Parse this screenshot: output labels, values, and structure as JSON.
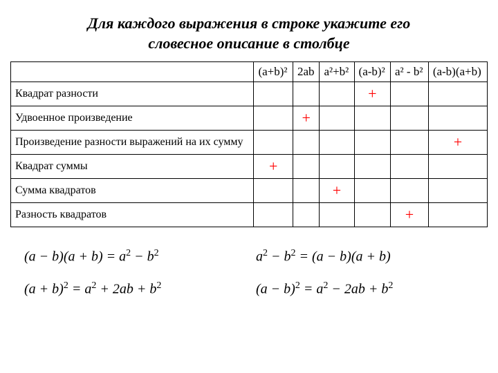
{
  "title_line1": "Для каждого выражения в строке укажите его",
  "title_line2": "словесное описание в столбце",
  "columns": [
    "(a+b)²",
    "2ab",
    "a²+b²",
    "(a-b)²",
    "a² - b²",
    "(a-b)(a+b)"
  ],
  "rows": [
    {
      "label": "Квадрат разности",
      "marks": [
        "",
        "",
        "",
        "+",
        "",
        ""
      ]
    },
    {
      "label": "Удвоенное произведение",
      "marks": [
        "",
        "+",
        "",
        "",
        "",
        ""
      ]
    },
    {
      "label": "Произведение разности выражений на их сумму",
      "marks": [
        "",
        "",
        "",
        "",
        "",
        "+"
      ]
    },
    {
      "label": "Квадрат суммы",
      "marks": [
        "+",
        "",
        "",
        "",
        "",
        ""
      ]
    },
    {
      "label": "Сумма квадратов",
      "marks": [
        "",
        "",
        "+",
        "",
        "",
        ""
      ]
    },
    {
      "label": "Разность квадратов",
      "marks": [
        "",
        "",
        "",
        "",
        "+",
        ""
      ]
    }
  ],
  "formulas": [
    "(a − b)(a + b) = a² − b²",
    "a² − b² = (a − b)(a + b)",
    "(a + b)² = a² + 2ab + b²",
    "(a − b)² = a² − 2ab + b²"
  ],
  "styling": {
    "title_fontsize": 22,
    "table_fontsize": 17,
    "mark_color": "#ff0000",
    "mark_fontsize": 22,
    "formula_fontsize": 20,
    "background": "#ffffff",
    "border_color": "#000000"
  }
}
